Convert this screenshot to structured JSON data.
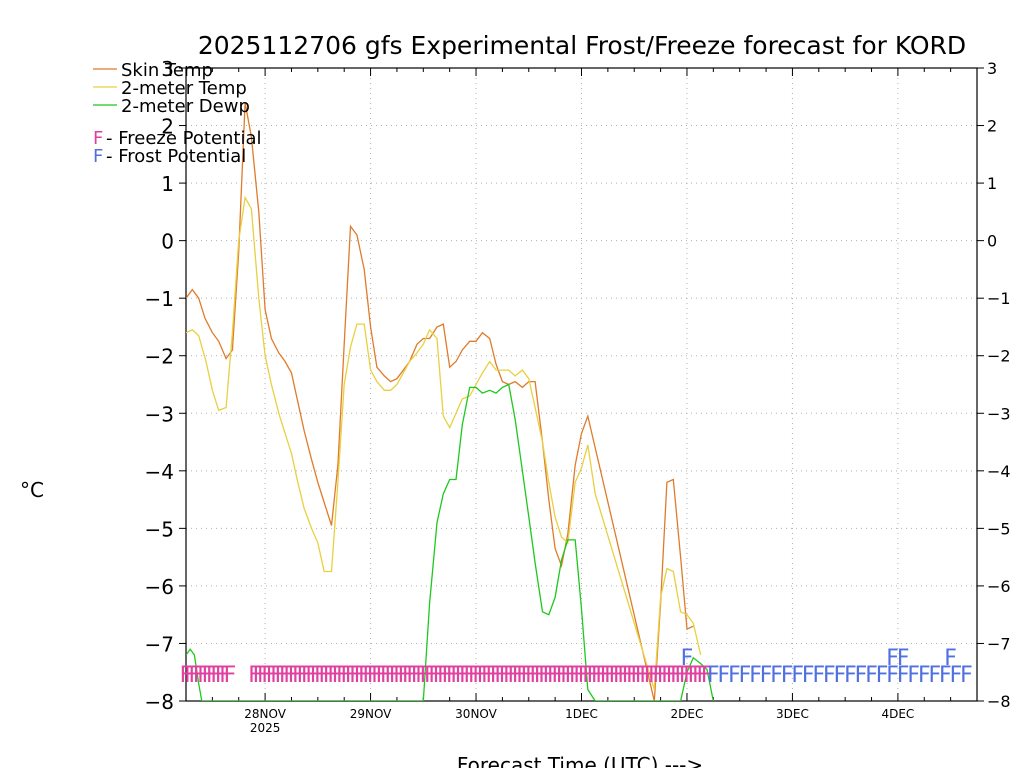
{
  "chart_data": {
    "type": "line",
    "title": "2025112706 gfs Experimental Frost/Freeze forecast for KORD",
    "xlabel": "Forecast Time (UTC) --->",
    "ylabel": "°C",
    "ylim": [
      -8,
      3
    ],
    "xlim": [
      0,
      7.5
    ],
    "x_units": "days since 2025-11-27 06 UTC",
    "yticks": [
      3,
      2,
      1,
      0,
      -1,
      -2,
      -3,
      -4,
      -5,
      -6,
      -7,
      -8
    ],
    "ytick_labels": [
      "3",
      "2",
      "1",
      "0",
      "−1",
      "−2",
      "−3",
      "−4",
      "−5",
      "−6",
      "−7",
      "−8"
    ],
    "xticks": [
      {
        "x": 0.75,
        "label": "28NOV",
        "sublabel": "2025"
      },
      {
        "x": 1.75,
        "label": "29NOV",
        "sublabel": ""
      },
      {
        "x": 2.75,
        "label": "30NOV",
        "sublabel": ""
      },
      {
        "x": 3.75,
        "label": "1DEC",
        "sublabel": ""
      },
      {
        "x": 4.75,
        "label": "2DEC",
        "sublabel": ""
      },
      {
        "x": 5.75,
        "label": "3DEC",
        "sublabel": ""
      },
      {
        "x": 6.75,
        "label": "4DEC",
        "sublabel": ""
      }
    ],
    "grid": true,
    "legend": {
      "position": "top-left",
      "entries": [
        {
          "label": "Skin Temp",
          "color": "#e07b2a"
        },
        {
          "label": "2-meter Temp",
          "color": "#e8d040"
        },
        {
          "label": "2-meter Dewp",
          "color": "#1ec81e"
        }
      ],
      "markers": [
        {
          "symbol": "F",
          "label": " - Freeze Potential",
          "color": "#e040a0"
        },
        {
          "symbol": "F",
          "label": " - Frost Potential",
          "color": "#5070e0"
        }
      ]
    },
    "series": [
      {
        "name": "Skin Temp",
        "color": "#e07b2a",
        "x": [
          0,
          0.06,
          0.12,
          0.18,
          0.25,
          0.31,
          0.38,
          0.44,
          0.5,
          0.56,
          0.62,
          0.69,
          0.75,
          0.81,
          0.88,
          0.94,
          1,
          1.06,
          1.12,
          1.19,
          1.25,
          1.31,
          1.38,
          1.44,
          1.5,
          1.56,
          1.62,
          1.69,
          1.75,
          1.81,
          1.88,
          1.94,
          2,
          2.06,
          2.12,
          2.19,
          2.25,
          2.31,
          2.38,
          2.44,
          2.5,
          2.56,
          2.62,
          2.69,
          2.75,
          2.81,
          2.88,
          2.94,
          3,
          3.06,
          3.12,
          3.19,
          3.25,
          3.31,
          3.38,
          3.44,
          3.5,
          3.56,
          3.62,
          3.69,
          3.75,
          3.81,
          4.44,
          4.5,
          4.56,
          4.62,
          4.69,
          4.75,
          4.81
        ],
        "values": [
          -1,
          -0.85,
          -1,
          -1.35,
          -1.6,
          -1.75,
          -2.05,
          -1.9,
          -0.2,
          2.4,
          1.8,
          0.5,
          -1.2,
          -1.7,
          -1.95,
          -2.1,
          -2.3,
          -2.8,
          -3.3,
          -3.8,
          -4.2,
          -4.55,
          -4.95,
          -3.9,
          -1.8,
          0.25,
          0.1,
          -0.5,
          -1.5,
          -2.2,
          -2.35,
          -2.45,
          -2.4,
          -2.25,
          -2.1,
          -1.8,
          -1.7,
          -1.7,
          -1.5,
          -1.45,
          -2.2,
          -2.1,
          -1.9,
          -1.75,
          -1.75,
          -1.6,
          -1.7,
          -2.15,
          -2.45,
          -2.5,
          -2.45,
          -2.55,
          -2.45,
          -2.45,
          -3.5,
          -4.5,
          -5.35,
          -5.65,
          -5.1,
          -3.9,
          -3.35,
          -3.05,
          -8,
          -6.3,
          -4.2,
          -4.15,
          -5.5,
          -6.75,
          -6.7
        ]
      },
      {
        "name": "2-meter Temp",
        "color": "#e8d040",
        "x": [
          0,
          0.06,
          0.12,
          0.19,
          0.25,
          0.31,
          0.38,
          0.44,
          0.5,
          0.56,
          0.62,
          0.69,
          0.75,
          0.81,
          0.88,
          0.94,
          1,
          1.06,
          1.12,
          1.19,
          1.25,
          1.31,
          1.38,
          1.44,
          1.5,
          1.56,
          1.62,
          1.69,
          1.75,
          1.81,
          1.88,
          1.94,
          2,
          2.06,
          2.12,
          2.19,
          2.25,
          2.31,
          2.38,
          2.44,
          2.5,
          2.56,
          2.62,
          2.69,
          2.75,
          2.81,
          2.88,
          2.94,
          3,
          3.06,
          3.12,
          3.19,
          3.25,
          3.31,
          3.38,
          3.44,
          3.5,
          3.56,
          3.62,
          3.69,
          3.75,
          3.81,
          3.88,
          4.44,
          4.5,
          4.56,
          4.62,
          4.69,
          4.75,
          4.81,
          4.88
        ],
        "values": [
          -1.6,
          -1.55,
          -1.65,
          -2.1,
          -2.6,
          -2.95,
          -2.9,
          -1.6,
          0,
          0.75,
          0.55,
          -1,
          -2,
          -2.5,
          -3,
          -3.35,
          -3.7,
          -4.2,
          -4.65,
          -5,
          -5.25,
          -5.75,
          -5.75,
          -4.2,
          -2.5,
          -1.85,
          -1.45,
          -1.45,
          -2.25,
          -2.45,
          -2.6,
          -2.6,
          -2.5,
          -2.3,
          -2.1,
          -1.95,
          -1.8,
          -1.55,
          -1.7,
          -3.05,
          -3.25,
          -3,
          -2.75,
          -2.7,
          -2.5,
          -2.3,
          -2.1,
          -2.25,
          -2.25,
          -2.25,
          -2.35,
          -2.25,
          -2.4,
          -2.9,
          -3.5,
          -4.2,
          -4.8,
          -5.15,
          -5.25,
          -4.2,
          -3.95,
          -3.55,
          -4.4,
          -7.8,
          -6.2,
          -5.7,
          -5.75,
          -6.45,
          -6.5,
          -6.65,
          -7.2
        ]
      },
      {
        "name": "2-meter Dewp",
        "color": "#1ec81e",
        "x": [
          0,
          0.04,
          0.08,
          0.12,
          0.15,
          2.25,
          2.31,
          2.38,
          2.44,
          2.5,
          2.56,
          2.62,
          2.69,
          2.75,
          2.81,
          2.88,
          2.94,
          3,
          3.06,
          3.12,
          3.19,
          3.25,
          3.31,
          3.38,
          3.44,
          3.5,
          3.56,
          3.62,
          3.69,
          3.75,
          3.81,
          3.88,
          3.94,
          4,
          4.06,
          4.12,
          4.19,
          4.25,
          4.31,
          4.38,
          4.44,
          4.5,
          4.56,
          4.62,
          4.69,
          4.75,
          4.81,
          4.88,
          4.94,
          5
        ],
        "values": [
          -7.2,
          -7.1,
          -7.2,
          -7.7,
          -8,
          -8,
          -6.3,
          -4.9,
          -4.4,
          -4.15,
          -4.15,
          -3.2,
          -2.55,
          -2.55,
          -2.65,
          -2.6,
          -2.65,
          -2.55,
          -2.5,
          -3.1,
          -4,
          -4.8,
          -5.6,
          -6.45,
          -6.5,
          -6.2,
          -5.55,
          -5.2,
          -5.2,
          -6.4,
          -7.8,
          -8,
          -8,
          -8,
          -8,
          -8,
          -8,
          -8,
          -8,
          -8,
          -8,
          -8,
          -8,
          -8,
          -8,
          -7.5,
          -7.25,
          -7.35,
          -7.45,
          -8
        ]
      }
    ],
    "freeze_markers": {
      "color": "#e040a0",
      "symbol": "F",
      "y": -7.5,
      "ranges": [
        [
          0.0,
          0.45
        ],
        [
          0.65,
          4.95
        ]
      ]
    },
    "frost_markers": {
      "color": "#5070e0",
      "symbol": "F",
      "points": [
        {
          "x": 4.75,
          "y": -7.2
        },
        {
          "x": 5.0,
          "y": -7.5
        },
        {
          "x": 5.1,
          "y": -7.5
        },
        {
          "x": 5.2,
          "y": -7.5
        },
        {
          "x": 5.3,
          "y": -7.5
        },
        {
          "x": 5.4,
          "y": -7.5
        },
        {
          "x": 5.5,
          "y": -7.5
        },
        {
          "x": 5.6,
          "y": -7.5
        },
        {
          "x": 5.7,
          "y": -7.5
        },
        {
          "x": 5.8,
          "y": -7.5
        },
        {
          "x": 5.9,
          "y": -7.5
        },
        {
          "x": 6.0,
          "y": -7.5
        },
        {
          "x": 6.1,
          "y": -7.5
        },
        {
          "x": 6.2,
          "y": -7.5
        },
        {
          "x": 6.3,
          "y": -7.5
        },
        {
          "x": 6.4,
          "y": -7.5
        },
        {
          "x": 6.5,
          "y": -7.5
        },
        {
          "x": 6.6,
          "y": -7.5
        },
        {
          "x": 6.7,
          "y": -7.5
        },
        {
          "x": 6.8,
          "y": -7.5
        },
        {
          "x": 6.9,
          "y": -7.5
        },
        {
          "x": 7.0,
          "y": -7.5
        },
        {
          "x": 7.1,
          "y": -7.5
        },
        {
          "x": 7.2,
          "y": -7.5
        },
        {
          "x": 7.3,
          "y": -7.5
        },
        {
          "x": 7.4,
          "y": -7.5
        },
        {
          "x": 6.7,
          "y": -7.2
        },
        {
          "x": 6.8,
          "y": -7.2
        },
        {
          "x": 7.25,
          "y": -7.2
        }
      ]
    }
  }
}
